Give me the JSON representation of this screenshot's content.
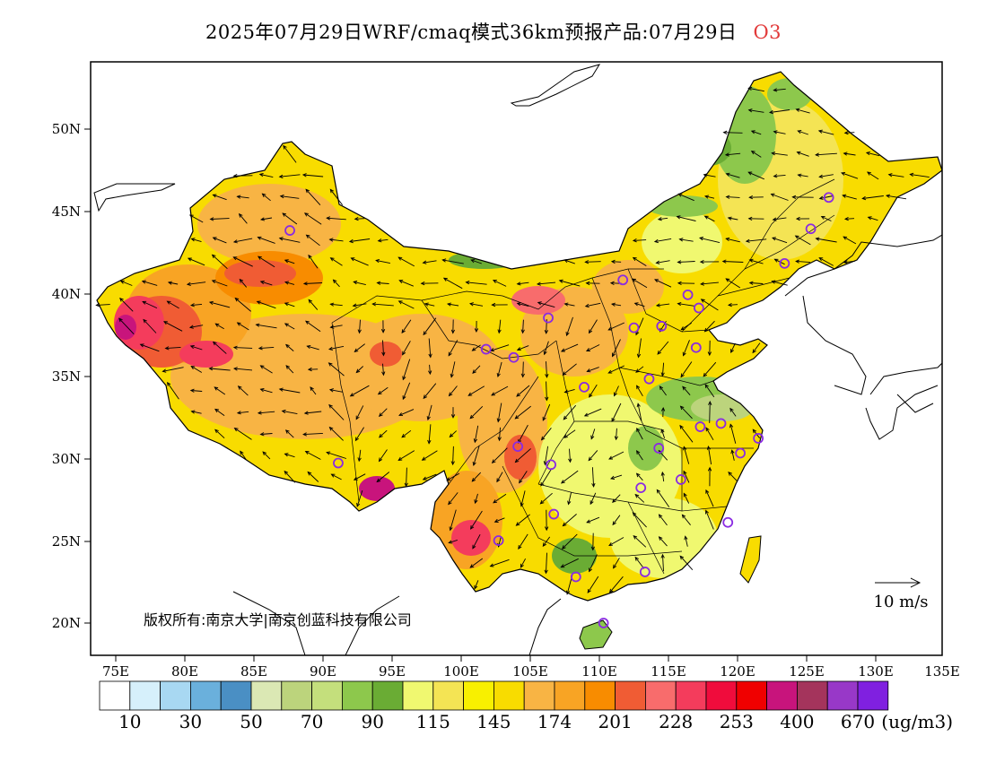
{
  "header": {
    "title": "2025年07月29日WRF/cmaq模式36km预报产品:07月29日",
    "species": "O3"
  },
  "map": {
    "x_ticks": [
      "75E",
      "80E",
      "85E",
      "90E",
      "95E",
      "100E",
      "105E",
      "110E",
      "115E",
      "120E",
      "125E",
      "130E",
      "135E"
    ],
    "y_ticks": [
      "50N",
      "45N",
      "40N",
      "35N",
      "30N",
      "25N",
      "20N"
    ],
    "copyright_text": "版权所有:南京大学|南京创蓝科技有限公司",
    "wind_reference": "10 m/s"
  },
  "legend": {
    "colors": [
      "#ffffff",
      "#d6f0fb",
      "#a8d8f2",
      "#6ab0dc",
      "#4a8fc4",
      "#dbe8b4",
      "#bcd47c",
      "#c4df7c",
      "#8dc84c",
      "#6aac34",
      "#f0f870",
      "#f4e454",
      "#f8f000",
      "#f8dc00",
      "#f8b444",
      "#f8a424",
      "#f88c00",
      "#f05c34",
      "#f86c6c",
      "#f43c5c",
      "#f00c3c",
      "#f00000",
      "#c8147c",
      "#a4345c",
      "#9838c8",
      "#8020e0"
    ],
    "labels": [
      "10",
      "30",
      "50",
      "70",
      "90",
      "115",
      "145",
      "174",
      "201",
      "228",
      "253",
      "400",
      "670"
    ],
    "unit": "(ug/m3)"
  },
  "stations": [
    {
      "lon": 87.6,
      "lat": 43.8
    },
    {
      "lon": 91.1,
      "lat": 29.7
    },
    {
      "lon": 101.8,
      "lat": 36.6
    },
    {
      "lon": 103.8,
      "lat": 36.1
    },
    {
      "lon": 106.3,
      "lat": 38.5
    },
    {
      "lon": 111.7,
      "lat": 40.8
    },
    {
      "lon": 112.5,
      "lat": 37.9
    },
    {
      "lon": 114.5,
      "lat": 38.0
    },
    {
      "lon": 116.4,
      "lat": 39.9
    },
    {
      "lon": 117.2,
      "lat": 39.1
    },
    {
      "lon": 108.9,
      "lat": 34.3
    },
    {
      "lon": 113.6,
      "lat": 34.8
    },
    {
      "lon": 117.0,
      "lat": 36.7
    },
    {
      "lon": 123.4,
      "lat": 41.8
    },
    {
      "lon": 125.3,
      "lat": 43.9
    },
    {
      "lon": 126.6,
      "lat": 45.8
    },
    {
      "lon": 104.1,
      "lat": 30.7
    },
    {
      "lon": 106.5,
      "lat": 29.6
    },
    {
      "lon": 106.7,
      "lat": 26.6
    },
    {
      "lon": 102.7,
      "lat": 25.0
    },
    {
      "lon": 108.3,
      "lat": 22.8
    },
    {
      "lon": 113.3,
      "lat": 23.1
    },
    {
      "lon": 110.3,
      "lat": 20.0
    },
    {
      "lon": 119.3,
      "lat": 26.1
    },
    {
      "lon": 114.3,
      "lat": 30.6
    },
    {
      "lon": 113.0,
      "lat": 28.2
    },
    {
      "lon": 115.9,
      "lat": 28.7
    },
    {
      "lon": 117.3,
      "lat": 31.9
    },
    {
      "lon": 118.8,
      "lat": 32.1
    },
    {
      "lon": 120.2,
      "lat": 30.3
    },
    {
      "lon": 121.5,
      "lat": 31.2
    }
  ]
}
